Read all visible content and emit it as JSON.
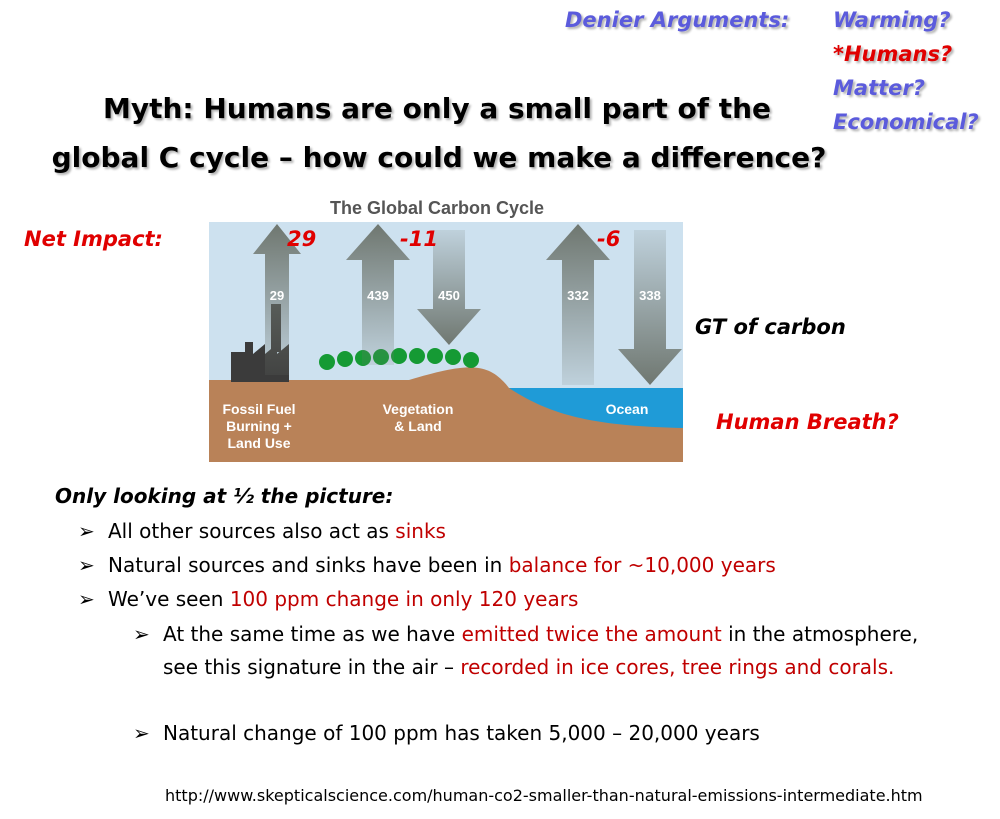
{
  "denier": {
    "label": "Denier Arguments:",
    "items": [
      {
        "text": "Warming?",
        "color": "#5b5bdc"
      },
      {
        "text": "*Humans?",
        "color": "#e00000"
      },
      {
        "text": "Matter?",
        "color": "#5b5bdc"
      },
      {
        "text": "Economical?",
        "color": "#5b5bdc"
      }
    ]
  },
  "title": [
    "Myth: Humans are only a small part of the",
    "global C cycle – how could we make a difference?"
  ],
  "diagram": {
    "title": "The Global Carbon Cycle",
    "net_label": "Net Impact:",
    "net_values": [
      29,
      -11,
      -6
    ],
    "flows": [
      29,
      439,
      450,
      332,
      338
    ],
    "regions": [
      [
        "Fossil Fuel",
        "Burning +",
        "Land Use"
      ],
      [
        "Vegetation",
        "& Land"
      ],
      [
        "Ocean"
      ]
    ],
    "unit_note": "GT of carbon",
    "question": "Human Breath?"
  },
  "section_heading": "Only looking at ½ the picture:",
  "bullets": [
    {
      "level": 1,
      "segments": [
        {
          "text": "All other sources also act as "
        },
        {
          "text": "sinks",
          "color": "#c00000"
        }
      ]
    },
    {
      "level": 1,
      "segments": [
        {
          "text": "Natural sources and sinks have been in "
        },
        {
          "text": "balance for ~10,000 years",
          "color": "#c00000"
        }
      ]
    },
    {
      "level": 1,
      "segments": [
        {
          "text": " We’ve seen "
        },
        {
          "text": "100 ppm change in only 120 years",
          "color": "#c00000"
        }
      ]
    },
    {
      "level": 2,
      "segments": [
        {
          "text": "At the same time as we have "
        },
        {
          "text": "emitted twice the amount",
          "color": "#c00000"
        },
        {
          "text": " in the atmosphere, see this signature in the air – "
        },
        {
          "text": "recorded in ice cores, tree rings and corals.",
          "color": "#c00000"
        }
      ]
    },
    {
      "level": 2,
      "segments": [
        {
          "text": "Natural change of 100 ppm has taken 5,000 – 20,000 years"
        }
      ]
    }
  ],
  "source_url": "http://www.skepticalscience.com/human-co2-smaller-than-natural-emissions-intermediate.htm"
}
